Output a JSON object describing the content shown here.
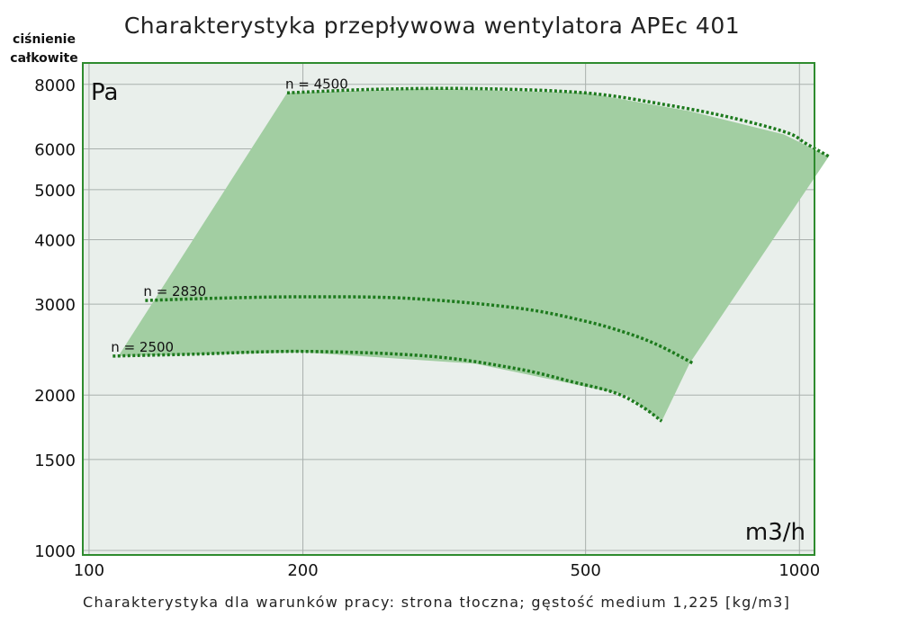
{
  "chart_data": {
    "type": "line",
    "title": "Charakterystyka przepływowa wentylatora APEc 401",
    "ylabel_line1": "ciśnienie",
    "ylabel_line2": "całkowite",
    "y_unit": "Pa",
    "x_unit": "m3/h",
    "x_scale": "log",
    "y_scale": "log",
    "xlim": [
      98,
      1050
    ],
    "ylim": [
      980,
      8800
    ],
    "x_ticks": [
      100,
      200,
      500,
      1000
    ],
    "y_ticks": [
      1000,
      1500,
      2000,
      3000,
      4000,
      5000,
      6000,
      8000
    ],
    "grid": true,
    "operating_region": {
      "color": "#a2cea2",
      "polygon": [
        [
          110,
          2380
        ],
        [
          190,
          7700
        ],
        [
          300,
          7850
        ],
        [
          500,
          7700
        ],
        [
          700,
          7100
        ],
        [
          950,
          6400
        ],
        [
          1100,
          5800
        ],
        [
          700,
          2300
        ],
        [
          640,
          1780
        ],
        [
          570,
          2000
        ],
        [
          350,
          2300
        ],
        [
          200,
          2420
        ],
        [
          110,
          2380
        ]
      ]
    },
    "series": [
      {
        "name": "n = 4500",
        "points": [
          [
            190,
            7700
          ],
          [
            250,
            7820
          ],
          [
            350,
            7850
          ],
          [
            500,
            7700
          ],
          [
            650,
            7300
          ],
          [
            800,
            6900
          ],
          [
            960,
            6450
          ],
          [
            1020,
            6150
          ],
          [
            1100,
            5800
          ]
        ]
      },
      {
        "name": "n = 2830",
        "points": [
          [
            120,
            3050
          ],
          [
            150,
            3080
          ],
          [
            200,
            3100
          ],
          [
            280,
            3080
          ],
          [
            400,
            2950
          ],
          [
            500,
            2780
          ],
          [
            580,
            2620
          ],
          [
            640,
            2480
          ],
          [
            710,
            2300
          ]
        ]
      },
      {
        "name": "n = 2500",
        "points": [
          [
            108,
            2380
          ],
          [
            140,
            2400
          ],
          [
            200,
            2430
          ],
          [
            300,
            2380
          ],
          [
            400,
            2250
          ],
          [
            480,
            2120
          ],
          [
            550,
            2020
          ],
          [
            600,
            1900
          ],
          [
            640,
            1780
          ]
        ]
      }
    ],
    "colors": {
      "region": "#a2cea2",
      "curve": "#1d7a1d",
      "frame": "#2e8b2e",
      "background": "#e9efeb",
      "grid": "#a9b0ad"
    }
  },
  "footer": "Charakterystyka dla warunków pracy: strona tłoczna; gęstość medium 1,225 [kg/m3]"
}
